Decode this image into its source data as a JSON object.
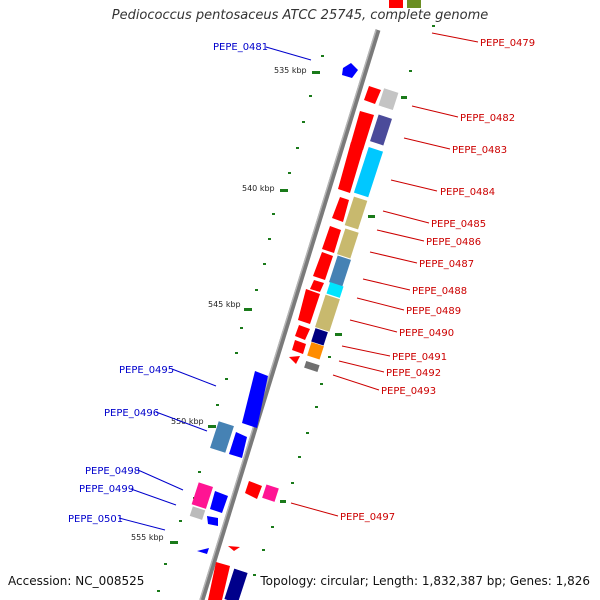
{
  "title": "Pediococcus pentosaceus ATCC 25745, complete genome",
  "footer": {
    "accession": "Accession: NC_008525",
    "summary": "Topology: circular; Length: 1,832,387 bp; Genes: 1,826"
  },
  "kbp_labels": [
    "535 kbp",
    "540 kbp",
    "545 kbp",
    "550 kbp",
    "555 kbp"
  ],
  "forward_gene_labels": [
    "PEPE_0479",
    "PEPE_0482",
    "PEPE_0483",
    "PEPE_0484",
    "PEPE_0485",
    "PEPE_0486",
    "PEPE_0487",
    "PEPE_0488",
    "PEPE_0489",
    "PEPE_0490",
    "PEPE_0491",
    "PEPE_0492",
    "PEPE_0493",
    "PEPE_0497"
  ],
  "reverse_gene_labels": [
    "PEPE_0481",
    "PEPE_0495",
    "PEPE_0496",
    "PEPE_0498",
    "PEPE_0499",
    "PEPE_0501"
  ],
  "colors": {
    "forward_label": "#cc0000",
    "reverse_label": "#0000aa",
    "backbone": "#888888",
    "tick": "#228b22"
  }
}
